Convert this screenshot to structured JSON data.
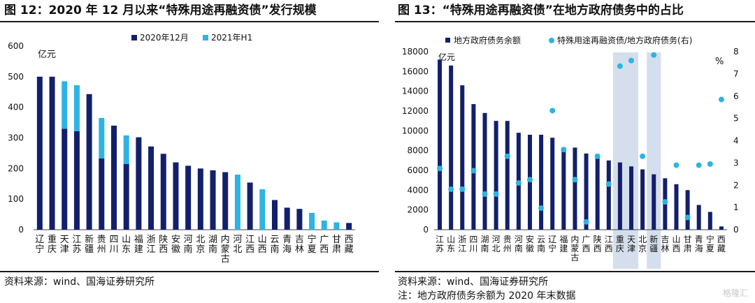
{
  "left": {
    "title": "图 12：2020 年 12 月以来“特殊用途再融资债”发行规模",
    "source": "资料来源：wind、国海证券研究所"
  },
  "right": {
    "title": "图 13：“特殊用途再融资债”在地方政府债务中的占比",
    "source": "资料来源：wind、国海证券研究所",
    "note": "注：地方政府债务余额为 2020 年末数据"
  },
  "watermark": "格隆汇",
  "chart_data": [
    {
      "type": "bar",
      "stacked": true,
      "unit_label": "亿元",
      "ylim": [
        0,
        600
      ],
      "yticks": [
        0,
        100,
        200,
        300,
        400,
        500,
        600
      ],
      "categories": [
        "辽宁",
        "重庆",
        "天津",
        "江苏",
        "新疆",
        "贵州",
        "四川",
        "山东",
        "福建",
        "浙江",
        "陕西",
        "安徽",
        "河南",
        "北京",
        "湖南",
        "内蒙古",
        "河北",
        "江西",
        "山西",
        "云南",
        "青海",
        "吉林",
        "宁夏",
        "广西",
        "甘肃",
        "西藏"
      ],
      "series": [
        {
          "name": "2020年12月",
          "color": "#12206b",
          "values": [
            500,
            500,
            330,
            322,
            443,
            233,
            340,
            215,
            302,
            272,
            248,
            220,
            209,
            200,
            194,
            188,
            0,
            154,
            0,
            97,
            72,
            68,
            0,
            0,
            0,
            22
          ]
        },
        {
          "name": "2021年H1",
          "color": "#2cb4e4",
          "values": [
            0,
            0,
            155,
            150,
            0,
            132,
            0,
            93,
            0,
            0,
            0,
            0,
            0,
            0,
            0,
            0,
            180,
            0,
            132,
            0,
            0,
            0,
            55,
            30,
            24,
            0
          ]
        }
      ]
    },
    {
      "type": "bar+scatter",
      "unit_label_left": "亿元",
      "unit_label_right": "%",
      "ylim": [
        0,
        18000
      ],
      "yticks": [
        0,
        2000,
        4000,
        6000,
        8000,
        10000,
        12000,
        14000,
        16000,
        18000
      ],
      "ylim_right": [
        0,
        8
      ],
      "yticks_right": [
        0,
        1,
        2,
        3,
        4,
        5,
        6,
        7,
        8
      ],
      "categories": [
        "江苏",
        "山东",
        "浙江",
        "四川",
        "湖南",
        "河北",
        "贵州",
        "河南",
        "安徽",
        "云南",
        "辽宁",
        "福建",
        "内蒙古",
        "广西",
        "陕西",
        "江西",
        "重庆",
        "天津",
        "北京",
        "新疆",
        "吉林",
        "山西",
        "甘肃",
        "青海",
        "宁夏",
        "西藏"
      ],
      "highlight": [
        "重庆",
        "天津",
        "新疆"
      ],
      "series": [
        {
          "name": "地方政府债务余额",
          "kind": "bar",
          "color": "#12206b",
          "values": [
            17200,
            16600,
            14600,
            12700,
            11800,
            11000,
            11000,
            9800,
            9600,
            9600,
            9300,
            8300,
            8300,
            7700,
            7500,
            7000,
            6800,
            6400,
            6100,
            5600,
            5200,
            4600,
            4000,
            2500,
            1800,
            330
          ]
        },
        {
          "name": "特殊用途再融资债/地方政府债务(右)",
          "kind": "scatter",
          "color": "#2cb4e4",
          "values": [
            2.75,
            1.82,
            1.82,
            2.65,
            1.6,
            1.6,
            3.3,
            2.1,
            2.25,
            0.97,
            5.35,
            3.6,
            2.25,
            0.35,
            3.3,
            2.05,
            7.35,
            7.6,
            3.3,
            7.85,
            1.25,
            2.9,
            0.55,
            2.9,
            2.95,
            5.85
          ]
        }
      ]
    }
  ]
}
